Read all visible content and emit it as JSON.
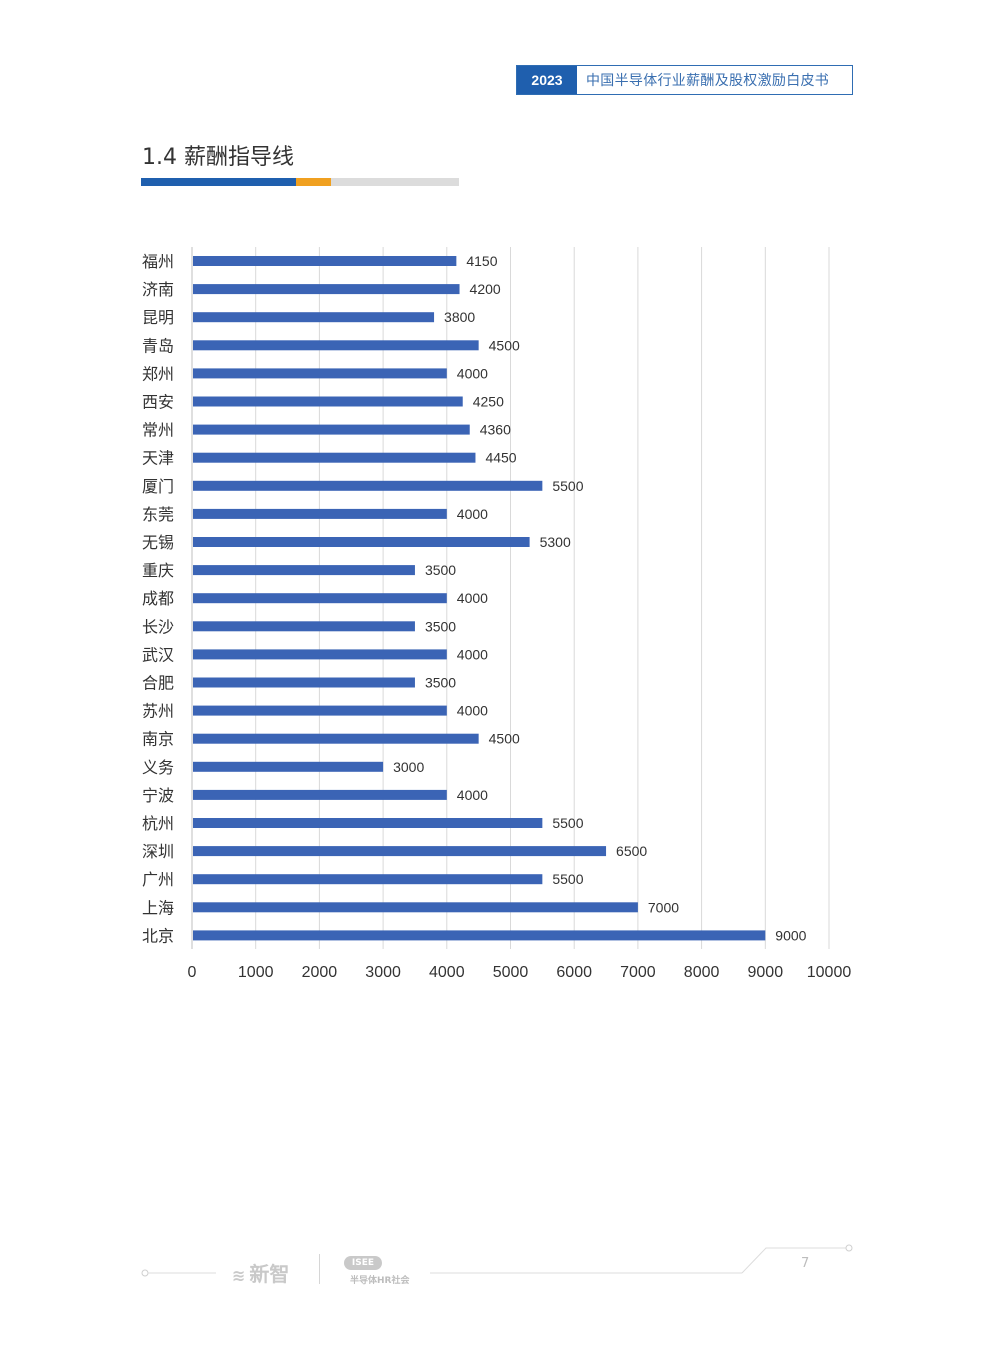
{
  "header": {
    "year": "2023",
    "title": "中国半导体行业薪酬及股权激励白皮书"
  },
  "section": {
    "title": "1.4 薪酬指导线"
  },
  "colors": {
    "bar": "#3b64b5",
    "brand_blue": "#1f5fae",
    "accent_orange": "#f0a020",
    "grid": "#d9d9d9"
  },
  "chart_data": {
    "type": "bar",
    "orientation": "horizontal",
    "categories": [
      "福州",
      "济南",
      "昆明",
      "青岛",
      "郑州",
      "西安",
      "常州",
      "天津",
      "厦门",
      "东莞",
      "无锡",
      "重庆",
      "成都",
      "长沙",
      "武汉",
      "合肥",
      "苏州",
      "南京",
      "义务",
      "宁波",
      "杭州",
      "深圳",
      "广州",
      "上海",
      "北京"
    ],
    "values": [
      4150,
      4200,
      3800,
      4500,
      4000,
      4250,
      4360,
      4450,
      5500,
      4000,
      5300,
      3500,
      4000,
      3500,
      4000,
      3500,
      4000,
      4500,
      3000,
      4000,
      5500,
      6500,
      5500,
      7000,
      9000
    ],
    "xlim": [
      0,
      10000
    ],
    "xticks": [
      0,
      1000,
      2000,
      3000,
      4000,
      5000,
      6000,
      7000,
      8000,
      9000,
      10000
    ],
    "grid": "vertical",
    "data_labels": true
  },
  "footer": {
    "logo1_text": "新智",
    "logo1_icon": "wave-icon",
    "logo2_badge": "ISEE",
    "logo2_text": "半导体HR社会",
    "page_number": "7"
  }
}
